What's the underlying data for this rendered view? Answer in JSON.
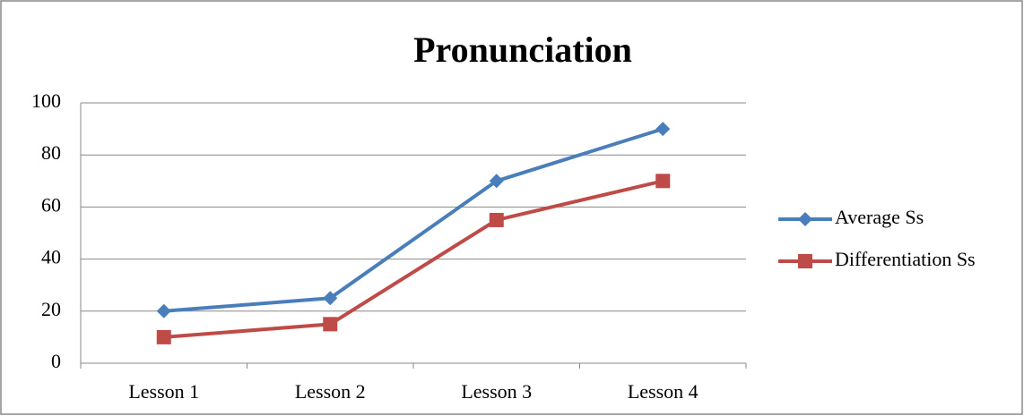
{
  "chart_data": {
    "type": "line",
    "title": "Pronunciation",
    "categories": [
      "Lesson 1",
      "Lesson 2",
      "Lesson 3",
      "Lesson 4"
    ],
    "series": [
      {
        "name": "Average Ss",
        "color": "#4a7ebb",
        "marker": "diamond",
        "values": [
          20,
          25,
          70,
          90
        ]
      },
      {
        "name": "Differentiation Ss",
        "color": "#be4b48",
        "marker": "square",
        "values": [
          10,
          15,
          55,
          70
        ]
      }
    ],
    "ylim": [
      0,
      100
    ],
    "yticks": [
      0,
      20,
      40,
      60,
      80,
      100
    ],
    "grid": true,
    "legend": "right"
  }
}
